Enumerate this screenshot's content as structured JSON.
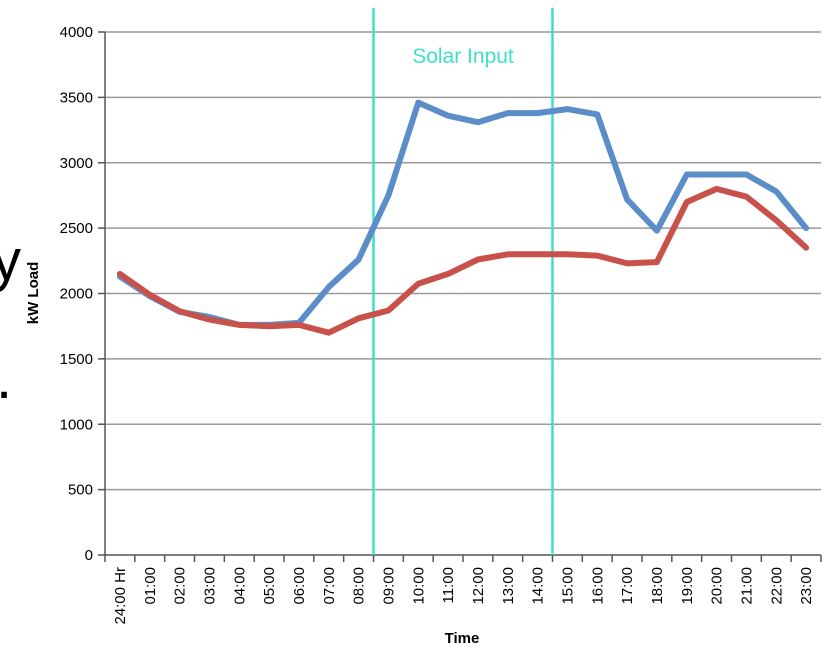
{
  "left_edge_text": {
    "upper": "y",
    "lower": "."
  },
  "chart_data": {
    "type": "line",
    "title": "",
    "xlabel": "Time",
    "ylabel": "kW Load",
    "ylim": [
      0,
      4000
    ],
    "yticks": [
      0,
      500,
      1000,
      1500,
      2000,
      2500,
      3000,
      3500,
      4000
    ],
    "grid": true,
    "legend": "none",
    "categories": [
      "24:00 Hr",
      "01:00",
      "02:00",
      "03:00",
      "04:00",
      "05:00",
      "06:00",
      "07:00",
      "08:00",
      "09:00",
      "10:00",
      "11:00",
      "12:00",
      "13:00",
      "14:00",
      "15:00",
      "16:00",
      "17:00",
      "18:00",
      "19:00",
      "20:00",
      "21:00",
      "22:00",
      "23:00"
    ],
    "series": [
      {
        "color": "#5b8ec9",
        "values": [
          2130,
          1980,
          1860,
          1820,
          1760,
          1760,
          1775,
          2050,
          2260,
          2750,
          3460,
          3360,
          3310,
          3380,
          3380,
          3410,
          3370,
          2720,
          2480,
          2910,
          2910,
          2910,
          2780,
          2500
        ]
      },
      {
        "color": "#c8524b",
        "values": [
          2150,
          1990,
          1865,
          1800,
          1760,
          1750,
          1760,
          1700,
          1810,
          1870,
          2075,
          2150,
          2260,
          2300,
          2300,
          2300,
          2290,
          2230,
          2240,
          2700,
          2800,
          2740,
          2560,
          2350
        ]
      }
    ],
    "annotations": [
      {
        "text": "Solar Input",
        "color": "#3fe0c8",
        "x_between": [
          "08:00",
          "09:00"
        ],
        "x_to": [
          "14:00",
          "15:00"
        ]
      }
    ]
  }
}
